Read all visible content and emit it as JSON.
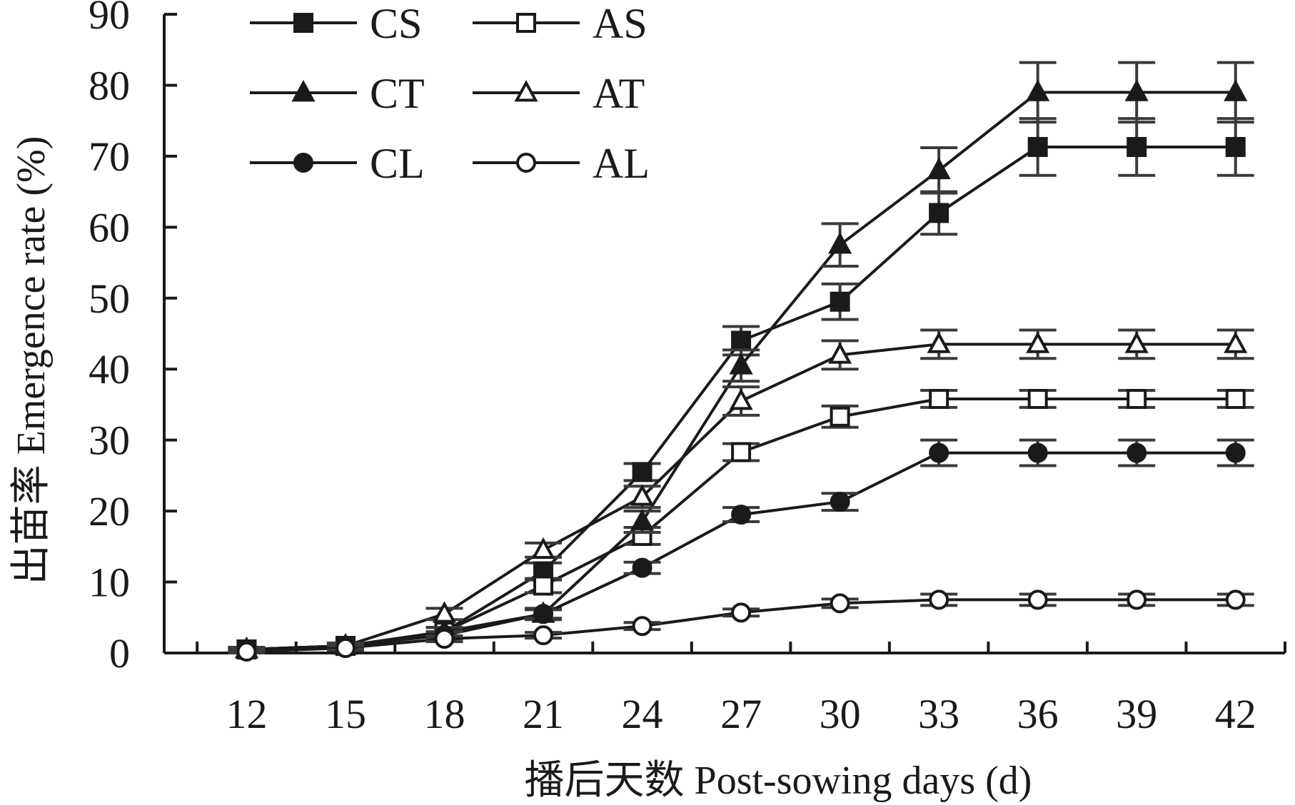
{
  "chart_data": {
    "type": "line",
    "xlabel": "播后天数 Post-sowing days (d)",
    "ylabel": "出苗率 Emergence rate (%)",
    "x": [
      12,
      15,
      18,
      21,
      24,
      27,
      30,
      33,
      36,
      39,
      42
    ],
    "xlim": [
      9.5,
      43.5
    ],
    "ylim": [
      0,
      90
    ],
    "yticks": [
      0,
      10,
      20,
      30,
      40,
      50,
      60,
      70,
      80,
      90
    ],
    "grid": false,
    "legend_position": "top-left",
    "series": [
      {
        "name": "CS",
        "marker": "filled-square",
        "values": [
          0.5,
          1.0,
          3.0,
          11.5,
          25.5,
          44.0,
          49.5,
          62.0,
          71.3,
          71.3,
          71.3
        ],
        "errors": [
          0.3,
          0.4,
          0.6,
          1.2,
          1.2,
          2.0,
          2.5,
          3.0,
          4.0,
          4.0,
          4.0
        ]
      },
      {
        "name": "AS",
        "marker": "open-square",
        "values": [
          0.5,
          1.0,
          3.0,
          9.5,
          16.5,
          28.3,
          33.3,
          35.8,
          35.8,
          35.8,
          35.8
        ],
        "errors": [
          0.3,
          0.4,
          0.6,
          1.0,
          1.2,
          1.2,
          1.5,
          1.2,
          1.2,
          1.2,
          1.2
        ]
      },
      {
        "name": "CT",
        "marker": "filled-triangle",
        "values": [
          0.5,
          1.0,
          3.0,
          5.5,
          18.5,
          40.5,
          57.5,
          68.0,
          79.0,
          79.0,
          79.0
        ],
        "errors": [
          0.3,
          0.4,
          0.6,
          0.8,
          1.5,
          2.2,
          3.0,
          3.2,
          4.2,
          4.2,
          4.2
        ]
      },
      {
        "name": "AT",
        "marker": "open-triangle",
        "values": [
          0.5,
          1.0,
          5.5,
          14.5,
          22.0,
          35.5,
          42.0,
          43.5,
          43.5,
          43.5,
          43.5
        ],
        "errors": [
          0.3,
          0.4,
          0.8,
          1.0,
          1.5,
          2.0,
          2.0,
          2.0,
          2.0,
          2.0,
          2.0
        ]
      },
      {
        "name": "CL",
        "marker": "filled-circle",
        "values": [
          0.5,
          1.0,
          2.5,
          5.5,
          12.0,
          19.5,
          21.3,
          28.2,
          28.2,
          28.2,
          28.2
        ],
        "errors": [
          0.3,
          0.4,
          0.5,
          0.6,
          0.8,
          1.0,
          1.2,
          1.8,
          1.8,
          1.8,
          1.8
        ]
      },
      {
        "name": "AL",
        "marker": "open-circle",
        "values": [
          0.2,
          0.7,
          2.0,
          2.5,
          3.8,
          5.7,
          7.0,
          7.5,
          7.5,
          7.5,
          7.5
        ],
        "errors": [
          0.2,
          0.3,
          0.4,
          0.4,
          0.5,
          0.5,
          0.6,
          0.8,
          0.8,
          0.8,
          0.8
        ]
      }
    ]
  },
  "legend": {
    "labels": [
      "CS",
      "AS",
      "CT",
      "AT",
      "CL",
      "AL"
    ]
  },
  "colors": {
    "line": "#1a1a1a",
    "error_bar": "#3a3a3a",
    "background": "#ffffff"
  }
}
